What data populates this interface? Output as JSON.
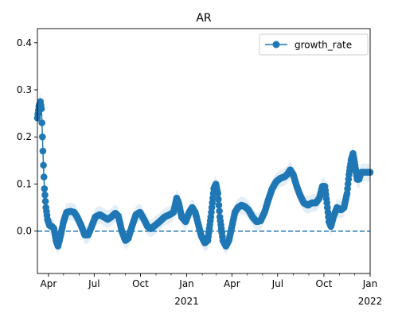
{
  "chart_data": {
    "type": "line",
    "title": "AR",
    "xlabel": "",
    "ylabel": "",
    "x_range": [
      "2020-03-10",
      "2022-01-01"
    ],
    "ylim": [
      -0.09,
      0.43
    ],
    "y_ticks": [
      0.0,
      0.1,
      0.2,
      0.3,
      0.4
    ],
    "y_tick_labels": [
      "0.0",
      "0.1",
      "0.2",
      "0.3",
      "0.4"
    ],
    "x_ticks": [
      {
        "date": "2020-04-01",
        "label": "Apr",
        "sub": ""
      },
      {
        "date": "2020-07-01",
        "label": "Jul",
        "sub": ""
      },
      {
        "date": "2020-10-01",
        "label": "Oct",
        "sub": ""
      },
      {
        "date": "2021-01-01",
        "label": "Jan",
        "sub": "2021"
      },
      {
        "date": "2021-04-01",
        "label": "Apr",
        "sub": ""
      },
      {
        "date": "2021-07-01",
        "label": "Jul",
        "sub": ""
      },
      {
        "date": "2021-10-01",
        "label": "Oct",
        "sub": ""
      },
      {
        "date": "2022-01-01",
        "label": "Jan",
        "sub": "2022"
      }
    ],
    "grid": false,
    "legend_position": "top-right",
    "reference_line": {
      "y": 0.0,
      "style": "dashed"
    },
    "colors": {
      "line": "#1f77b4",
      "band": "#1f77b4"
    },
    "series": [
      {
        "name": "growth_rate",
        "marker": "circle",
        "points": [
          [
            "2020-03-10",
            0.24
          ],
          [
            "2020-03-13",
            0.265
          ],
          [
            "2020-03-16",
            0.275
          ],
          [
            "2020-03-18",
            0.26
          ],
          [
            "2020-03-20",
            0.2
          ],
          [
            "2020-03-22",
            0.14
          ],
          [
            "2020-03-24",
            0.09
          ],
          [
            "2020-03-27",
            0.05
          ],
          [
            "2020-03-30",
            0.025
          ],
          [
            "2020-04-03",
            0.012
          ],
          [
            "2020-04-08",
            0.01
          ],
          [
            "2020-04-12",
            0.005
          ],
          [
            "2020-04-16",
            -0.02
          ],
          [
            "2020-04-20",
            -0.032
          ],
          [
            "2020-04-25",
            -0.01
          ],
          [
            "2020-05-01",
            0.02
          ],
          [
            "2020-05-07",
            0.04
          ],
          [
            "2020-05-15",
            0.042
          ],
          [
            "2020-05-22",
            0.04
          ],
          [
            "2020-05-28",
            0.03
          ],
          [
            "2020-06-05",
            0.012
          ],
          [
            "2020-06-12",
            -0.008
          ],
          [
            "2020-06-19",
            -0.008
          ],
          [
            "2020-06-26",
            0.01
          ],
          [
            "2020-07-03",
            0.03
          ],
          [
            "2020-07-12",
            0.035
          ],
          [
            "2020-07-20",
            0.03
          ],
          [
            "2020-07-28",
            0.025
          ],
          [
            "2020-08-04",
            0.03
          ],
          [
            "2020-08-12",
            0.038
          ],
          [
            "2020-08-18",
            0.032
          ],
          [
            "2020-08-25",
            0.0
          ],
          [
            "2020-09-01",
            -0.02
          ],
          [
            "2020-09-07",
            -0.015
          ],
          [
            "2020-09-14",
            0.01
          ],
          [
            "2020-09-22",
            0.035
          ],
          [
            "2020-09-30",
            0.04
          ],
          [
            "2020-10-08",
            0.025
          ],
          [
            "2020-10-15",
            0.01
          ],
          [
            "2020-10-22",
            0.005
          ],
          [
            "2020-10-30",
            0.012
          ],
          [
            "2020-11-08",
            0.02
          ],
          [
            "2020-11-18",
            0.03
          ],
          [
            "2020-11-28",
            0.035
          ],
          [
            "2020-12-06",
            0.04
          ],
          [
            "2020-12-12",
            0.07
          ],
          [
            "2020-12-16",
            0.06
          ],
          [
            "2020-12-22",
            0.03
          ],
          [
            "2020-12-30",
            0.02
          ],
          [
            "2021-01-06",
            0.04
          ],
          [
            "2021-01-12",
            0.05
          ],
          [
            "2021-01-18",
            0.04
          ],
          [
            "2021-01-24",
            0.015
          ],
          [
            "2021-01-30",
            -0.01
          ],
          [
            "2021-02-06",
            -0.025
          ],
          [
            "2021-02-12",
            -0.02
          ],
          [
            "2021-02-18",
            0.03
          ],
          [
            "2021-02-24",
            0.09
          ],
          [
            "2021-02-28",
            0.1
          ],
          [
            "2021-03-04",
            0.08
          ],
          [
            "2021-03-08",
            0.03
          ],
          [
            "2021-03-14",
            -0.02
          ],
          [
            "2021-03-20",
            -0.032
          ],
          [
            "2021-03-26",
            -0.02
          ],
          [
            "2021-04-01",
            0.01
          ],
          [
            "2021-04-07",
            0.04
          ],
          [
            "2021-04-13",
            0.05
          ],
          [
            "2021-04-20",
            0.055
          ],
          [
            "2021-04-27",
            0.052
          ],
          [
            "2021-05-04",
            0.045
          ],
          [
            "2021-05-12",
            0.03
          ],
          [
            "2021-05-20",
            0.02
          ],
          [
            "2021-05-28",
            0.022
          ],
          [
            "2021-06-05",
            0.04
          ],
          [
            "2021-06-12",
            0.065
          ],
          [
            "2021-06-20",
            0.09
          ],
          [
            "2021-06-28",
            0.105
          ],
          [
            "2021-07-06",
            0.112
          ],
          [
            "2021-07-14",
            0.115
          ],
          [
            "2021-07-20",
            0.12
          ],
          [
            "2021-07-26",
            0.13
          ],
          [
            "2021-08-01",
            0.12
          ],
          [
            "2021-08-08",
            0.095
          ],
          [
            "2021-08-15",
            0.075
          ],
          [
            "2021-08-22",
            0.06
          ],
          [
            "2021-08-30",
            0.055
          ],
          [
            "2021-09-07",
            0.06
          ],
          [
            "2021-09-15",
            0.06
          ],
          [
            "2021-09-22",
            0.07
          ],
          [
            "2021-09-28",
            0.095
          ],
          [
            "2021-10-03",
            0.095
          ],
          [
            "2021-10-07",
            0.06
          ],
          [
            "2021-10-11",
            0.02
          ],
          [
            "2021-10-15",
            0.01
          ],
          [
            "2021-10-20",
            0.03
          ],
          [
            "2021-10-27",
            0.05
          ],
          [
            "2021-11-04",
            0.045
          ],
          [
            "2021-11-10",
            0.05
          ],
          [
            "2021-11-16",
            0.08
          ],
          [
            "2021-11-20",
            0.12
          ],
          [
            "2021-11-24",
            0.15
          ],
          [
            "2021-11-28",
            0.165
          ],
          [
            "2021-12-02",
            0.14
          ],
          [
            "2021-12-06",
            0.11
          ],
          [
            "2021-12-10",
            0.11
          ],
          [
            "2021-12-14",
            0.125
          ],
          [
            "2021-12-20",
            0.125
          ],
          [
            "2021-12-26",
            0.125
          ],
          [
            "2022-01-01",
            0.125
          ]
        ]
      }
    ],
    "legend": [
      {
        "label": "growth_rate"
      }
    ]
  }
}
